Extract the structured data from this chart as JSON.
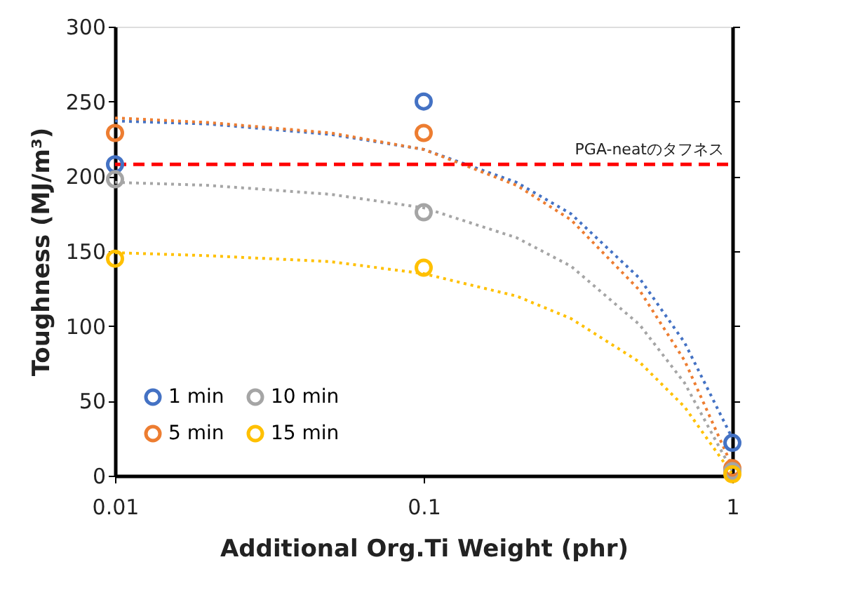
{
  "chart_data": {
    "type": "scatter",
    "xlabel": "Additional Org.Ti Weight (phr)",
    "ylabel": "Toughness (MJ/m³)",
    "x": [
      0.01,
      0.1,
      1
    ],
    "log": "x",
    "xlim": [
      0.01,
      1
    ],
    "xticks": [
      0.01,
      0.1,
      1
    ],
    "ylim": [
      0,
      300
    ],
    "yticks": [
      0,
      50,
      100,
      150,
      200,
      250,
      300
    ],
    "grid": false,
    "legend": "bottom left",
    "series": [
      {
        "name": "1 min",
        "color": "#4472c4",
        "marker": "circle",
        "values": [
          208,
          250,
          22
        ]
      },
      {
        "name": "5 min",
        "color": "#ed7d31",
        "marker": "circle",
        "values": [
          229,
          229,
          5
        ]
      },
      {
        "name": "10 min",
        "color": "#a5a5a5",
        "marker": "circle",
        "values": [
          198,
          176,
          3
        ]
      },
      {
        "name": "15 min",
        "color": "#ffc000",
        "marker": "circle",
        "values": [
          145,
          139,
          1
        ]
      },
      {
        "type": "line",
        "line_style": "dotted",
        "color": "#4472c4",
        "x": [
          0.01,
          0.02,
          0.05,
          0.1,
          0.2,
          0.3,
          0.5,
          0.7,
          1
        ],
        "values": [
          237,
          235,
          228,
          218,
          196,
          175,
          132,
          89,
          25
        ]
      },
      {
        "type": "line",
        "line_style": "dotted",
        "color": "#ed7d31",
        "x": [
          0.01,
          0.02,
          0.05,
          0.1,
          0.2,
          0.3,
          0.5,
          0.7,
          1
        ],
        "values": [
          239,
          236,
          229,
          218,
          194,
          171,
          124,
          77,
          6
        ]
      },
      {
        "type": "line",
        "line_style": "dotted",
        "color": "#a5a5a5",
        "x": [
          0.01,
          0.02,
          0.05,
          0.1,
          0.2,
          0.3,
          0.5,
          0.7,
          1
        ],
        "values": [
          196,
          194,
          188,
          179,
          159,
          140,
          101,
          62,
          3
        ]
      },
      {
        "type": "line",
        "line_style": "dotted",
        "color": "#ffc000",
        "x": [
          0.01,
          0.02,
          0.05,
          0.1,
          0.2,
          0.3,
          0.5,
          0.7,
          1
        ],
        "values": [
          149,
          147,
          143,
          135,
          120,
          105,
          76,
          46,
          1
        ]
      }
    ],
    "ref_lines": [
      {
        "axis": "y",
        "value": 208,
        "label": "PGA-neatのタフネス",
        "color": "#ff0000",
        "line_style": "dashed"
      }
    ]
  }
}
